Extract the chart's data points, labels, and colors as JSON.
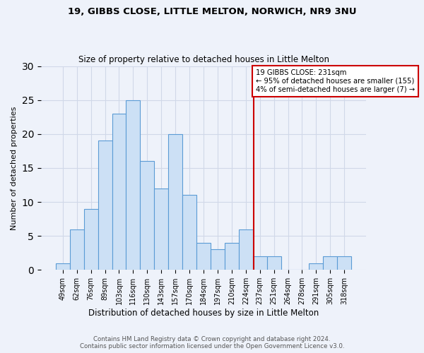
{
  "title1": "19, GIBBS CLOSE, LITTLE MELTON, NORWICH, NR9 3NU",
  "title2": "Size of property relative to detached houses in Little Melton",
  "xlabel": "Distribution of detached houses by size in Little Melton",
  "ylabel": "Number of detached properties",
  "categories": [
    "49sqm",
    "62sqm",
    "76sqm",
    "89sqm",
    "103sqm",
    "116sqm",
    "130sqm",
    "143sqm",
    "157sqm",
    "170sqm",
    "184sqm",
    "197sqm",
    "210sqm",
    "224sqm",
    "237sqm",
    "251sqm",
    "264sqm",
    "278sqm",
    "291sqm",
    "305sqm",
    "318sqm"
  ],
  "values": [
    1,
    6,
    9,
    19,
    23,
    25,
    16,
    12,
    20,
    11,
    4,
    3,
    4,
    6,
    2,
    2,
    0,
    0,
    1,
    2,
    2
  ],
  "bar_color": "#cce0f5",
  "bar_edge_color": "#5b9bd5",
  "marker_label": "19 GIBBS CLOSE: 231sqm",
  "annotation_line1": "← 95% of detached houses are smaller (155)",
  "annotation_line2": "4% of semi-detached houses are larger (7) →",
  "annotation_box_color": "#cc0000",
  "vline_color": "#cc0000",
  "ylim": [
    0,
    30
  ],
  "yticks": [
    0,
    5,
    10,
    15,
    20,
    25,
    30
  ],
  "grid_color": "#d0d8e8",
  "background_color": "#eef2fa",
  "footer_line1": "Contains HM Land Registry data © Crown copyright and database right 2024.",
  "footer_line2": "Contains public sector information licensed under the Open Government Licence v3.0."
}
